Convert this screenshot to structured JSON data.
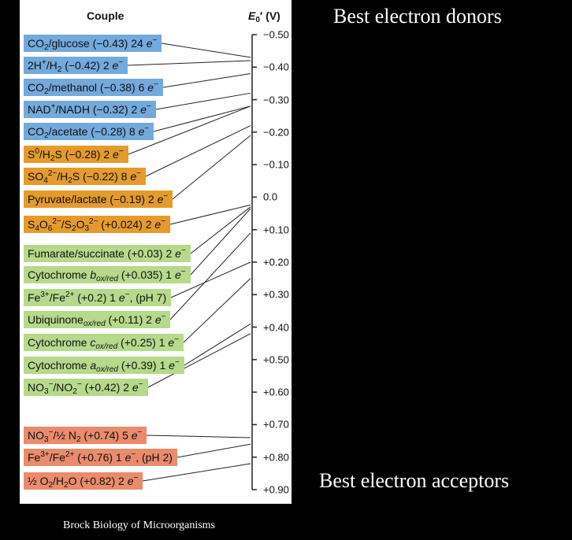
{
  "header": {
    "couple": "Couple",
    "potential": [
      {
        "text": "E",
        "style": "i"
      },
      {
        "text": "0",
        "style": "sub"
      },
      {
        "text": "′ (V)",
        "style": "b"
      }
    ]
  },
  "side_labels": {
    "donors": "Best electron donors",
    "acceptors": "Best electron acceptors"
  },
  "caption": "Brock Biology of Microorganisms",
  "scale": {
    "lim": [
      -0.5,
      0.9
    ],
    "ticks": [
      {
        "value": -0.5,
        "label": "−0.50"
      },
      {
        "value": -0.4,
        "label": "−0.40"
      },
      {
        "value": -0.3,
        "label": "−0.30"
      },
      {
        "value": -0.2,
        "label": "−0.20"
      },
      {
        "value": -0.1,
        "label": "−0.10"
      },
      {
        "value": 0,
        "label": "0.0"
      },
      {
        "value": 0.1,
        "label": "+0.10"
      },
      {
        "value": 0.2,
        "label": "+0.20"
      },
      {
        "value": 0.3,
        "label": "+0.30"
      },
      {
        "value": 0.4,
        "label": "+0.40"
      },
      {
        "value": 0.5,
        "label": "+0.50"
      },
      {
        "value": 0.6,
        "label": "+0.60"
      },
      {
        "value": 0.7,
        "label": "+0.70"
      },
      {
        "value": 0.8,
        "label": "+0.80"
      },
      {
        "value": 0.9,
        "label": "+0.90"
      }
    ]
  },
  "couples": [
    {
      "e0": -0.43,
      "color": "#74a9dc",
      "label": [
        "CO",
        {
          "text": "2",
          "style": "sub"
        },
        "/glucose (−0.43) 24 ",
        {
          "text": "e",
          "style": "i"
        },
        {
          "text": "−",
          "style": "sup"
        }
      ]
    },
    {
      "e0": -0.42,
      "color": "#74a9dc",
      "label": [
        "2H",
        {
          "text": "+",
          "style": "sup"
        },
        "/H",
        {
          "text": "2",
          "style": "sub"
        },
        " (−0.42) 2 ",
        {
          "text": "e",
          "style": "i"
        },
        {
          "text": "−",
          "style": "sup"
        }
      ]
    },
    {
      "e0": -0.38,
      "color": "#74a9dc",
      "label": [
        "CO",
        {
          "text": "2",
          "style": "sub"
        },
        "/methanol (−0.38) 6 ",
        {
          "text": "e",
          "style": "i"
        },
        {
          "text": "−",
          "style": "sup"
        }
      ]
    },
    {
      "e0": -0.32,
      "color": "#74a9dc",
      "label": [
        "NAD",
        {
          "text": "+",
          "style": "sup"
        },
        "/NADH (−0.32) 2 ",
        {
          "text": "e",
          "style": "i"
        },
        {
          "text": "−",
          "style": "sup"
        }
      ]
    },
    {
      "e0": -0.28,
      "color": "#74a9dc",
      "label": [
        "CO",
        {
          "text": "2",
          "style": "sub"
        },
        "/acetate (−0.28) 8 ",
        {
          "text": "e",
          "style": "i"
        },
        {
          "text": "−",
          "style": "sup"
        }
      ]
    },
    {
      "e0": -0.28,
      "color": "#e59b2c",
      "label": [
        "S",
        {
          "text": "0",
          "style": "sup"
        },
        "/H",
        {
          "text": "2",
          "style": "sub"
        },
        "S (−0.28) 2 ",
        {
          "text": "e",
          "style": "i"
        },
        {
          "text": "−",
          "style": "sup"
        }
      ]
    },
    {
      "e0": -0.22,
      "color": "#e59b2c",
      "label": [
        "SO",
        {
          "text": "4",
          "style": "sub"
        },
        {
          "text": "2−",
          "style": "sup"
        },
        "/H",
        {
          "text": "2",
          "style": "sub"
        },
        "S (−0.22) 8 ",
        {
          "text": "e",
          "style": "i"
        },
        {
          "text": "−",
          "style": "sup"
        }
      ]
    },
    {
      "e0": -0.19,
      "color": "#e59b2c",
      "label": [
        "Pyruvate/lactate (−0.19) 2 ",
        {
          "text": "e",
          "style": "i"
        },
        {
          "text": "−",
          "style": "sup"
        }
      ]
    },
    {
      "e0": 0.024,
      "color": "#e59b2c",
      "label": [
        "S",
        {
          "text": "4",
          "style": "sub"
        },
        "O",
        {
          "text": "6",
          "style": "sub"
        },
        {
          "text": "2−",
          "style": "sup"
        },
        "/S",
        {
          "text": "2",
          "style": "sub"
        },
        "O",
        {
          "text": "3",
          "style": "sub"
        },
        {
          "text": "2−",
          "style": "sup"
        },
        " (+0.024) 2 ",
        {
          "text": "e",
          "style": "i"
        },
        {
          "text": "−",
          "style": "sup"
        }
      ]
    },
    {
      "e0": 0.03,
      "color": "#b6d98c",
      "label": [
        "Fumarate/succinate (+0.03) 2 ",
        {
          "text": "e",
          "style": "i"
        },
        {
          "text": "−",
          "style": "sup"
        }
      ]
    },
    {
      "e0": 0.035,
      "color": "#b6d98c",
      "label": [
        "Cytochrome ",
        {
          "text": "b",
          "style": "i"
        },
        {
          "text": "ox/red",
          "style": "sub-i"
        },
        " (+0.035) 1 ",
        {
          "text": "e",
          "style": "i"
        },
        {
          "text": "−",
          "style": "sup"
        }
      ]
    },
    {
      "e0": 0.2,
      "color": "#b6d98c",
      "label": [
        "Fe",
        {
          "text": "3+",
          "style": "sup"
        },
        "/Fe",
        {
          "text": "2+",
          "style": "sup"
        },
        " (+0.2) 1 ",
        {
          "text": "e",
          "style": "i"
        },
        {
          "text": "−",
          "style": "sup"
        },
        ", (pH 7)"
      ]
    },
    {
      "e0": 0.11,
      "color": "#b6d98c",
      "label": [
        "Ubiquinone",
        {
          "text": "ox/red",
          "style": "sub-i"
        },
        " (+0.11) 2 ",
        {
          "text": "e",
          "style": "i"
        },
        {
          "text": "−",
          "style": "sup"
        }
      ]
    },
    {
      "e0": 0.25,
      "color": "#b6d98c",
      "label": [
        "Cytochrome ",
        {
          "text": "c",
          "style": "i"
        },
        {
          "text": "ox/red",
          "style": "sub-i"
        },
        " (+0.25) 1 ",
        {
          "text": "e",
          "style": "i"
        },
        {
          "text": "−",
          "style": "sup"
        }
      ]
    },
    {
      "e0": 0.39,
      "color": "#b6d98c",
      "label": [
        "Cytochrome ",
        {
          "text": "a",
          "style": "i"
        },
        {
          "text": "ox/red",
          "style": "sub-i"
        },
        " (+0.39) 1 ",
        {
          "text": "e",
          "style": "i"
        },
        {
          "text": "−",
          "style": "sup"
        }
      ]
    },
    {
      "e0": 0.42,
      "color": "#b6d98c",
      "label": [
        "NO",
        {
          "text": "3",
          "style": "sub"
        },
        {
          "text": "−",
          "style": "sup"
        },
        "/NO",
        {
          "text": "2",
          "style": "sub"
        },
        {
          "text": "−",
          "style": "sup"
        },
        " (+0.42) 2 ",
        {
          "text": "e",
          "style": "i"
        },
        {
          "text": "−",
          "style": "sup"
        }
      ]
    },
    {
      "e0": 0.74,
      "color": "#e98b6c",
      "label": [
        "NO",
        {
          "text": "3",
          "style": "sub"
        },
        {
          "text": "−",
          "style": "sup"
        },
        "/½ N",
        {
          "text": "2",
          "style": "sub"
        },
        " (+0.74) 5 ",
        {
          "text": "e",
          "style": "i"
        },
        {
          "text": "−",
          "style": "sup"
        }
      ]
    },
    {
      "e0": 0.76,
      "color": "#e98b6c",
      "label": [
        "Fe",
        {
          "text": "3+",
          "style": "sup"
        },
        "/Fe",
        {
          "text": "2+",
          "style": "sup"
        },
        " (+0.76) 1 ",
        {
          "text": "e",
          "style": "i"
        },
        {
          "text": "−",
          "style": "sup"
        },
        ", (pH 2)"
      ]
    },
    {
      "e0": 0.82,
      "color": "#e98b6c",
      "label": [
        "½ O",
        {
          "text": "2",
          "style": "sub"
        },
        "/H",
        {
          "text": "2",
          "style": "sub"
        },
        "O (+0.82) 2 ",
        {
          "text": "e",
          "style": "i"
        },
        {
          "text": "−",
          "style": "sup"
        }
      ]
    }
  ]
}
